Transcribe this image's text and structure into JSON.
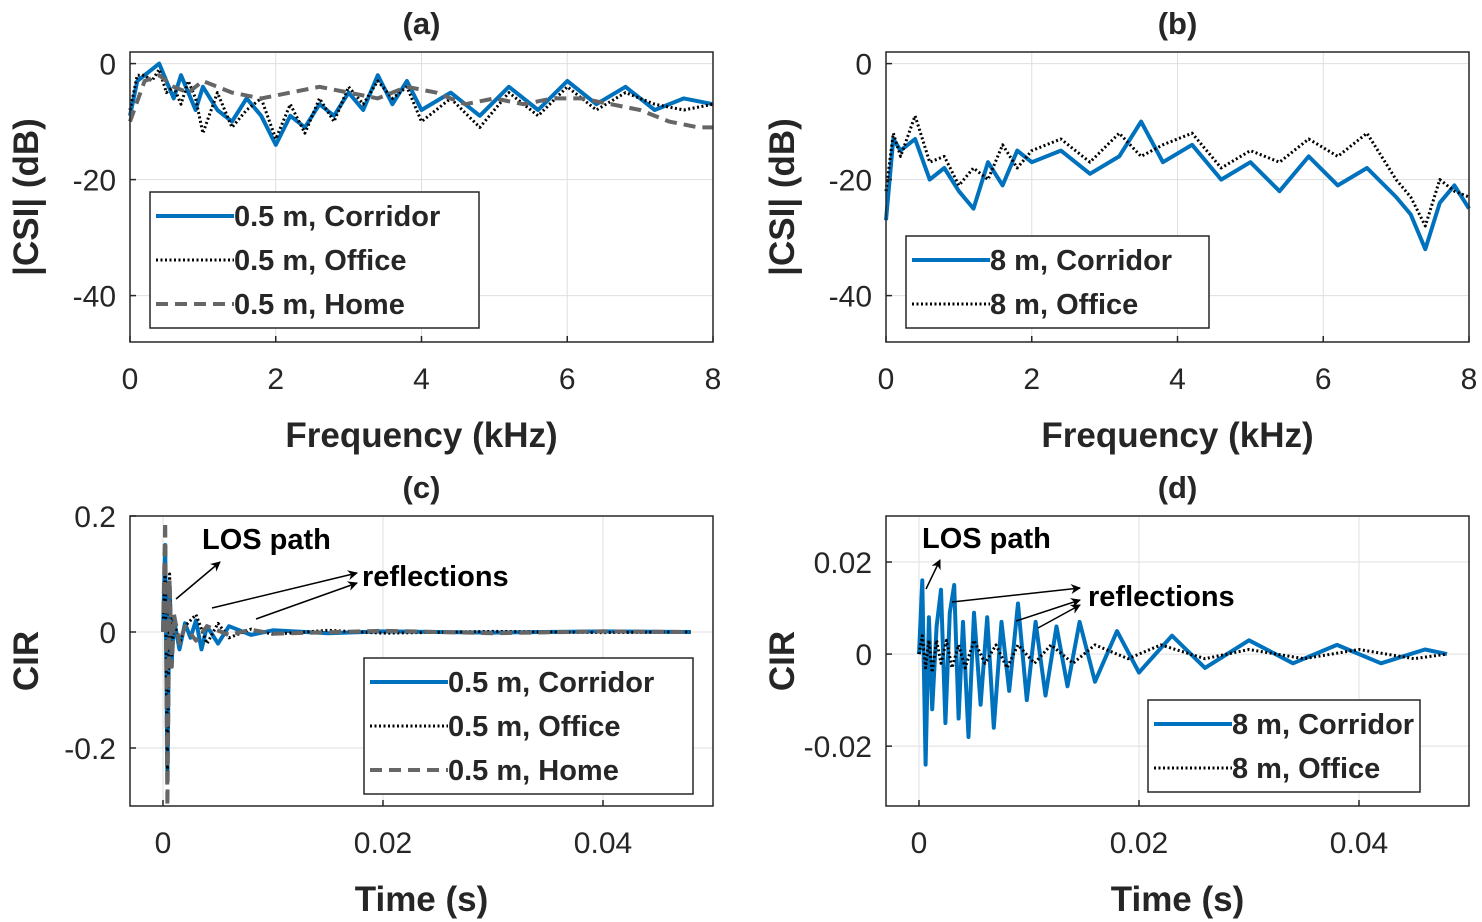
{
  "colors": {
    "corridor": "#0072bd",
    "office": "#000000",
    "home": "#666666",
    "axis": "#262626",
    "grid": "#dfdfdf"
  },
  "chart_data": [
    {
      "id": "a",
      "type": "line",
      "title": "(a)",
      "xlabel": "Frequency (kHz)",
      "ylabel": "|CSI| (dB)",
      "xlim": [
        0,
        8
      ],
      "ylim": [
        -48,
        2
      ],
      "xticks": [
        0,
        2,
        4,
        6,
        8
      ],
      "yticks": [
        0,
        -20,
        -40
      ],
      "xtick_labels": [
        "0",
        "2",
        "4",
        "6",
        "8"
      ],
      "ytick_labels": [
        "0",
        "-20",
        "-40"
      ],
      "grid": true,
      "legend_position": "bottom-left",
      "series": [
        {
          "name": "0.5 m, Corridor",
          "style": "solid",
          "color_key": "corridor",
          "x": [
            0,
            0.1,
            0.2,
            0.3,
            0.4,
            0.5,
            0.6,
            0.7,
            0.8,
            0.9,
            1.0,
            1.2,
            1.4,
            1.6,
            1.8,
            2.0,
            2.2,
            2.4,
            2.6,
            2.8,
            3.0,
            3.2,
            3.4,
            3.6,
            3.8,
            4.0,
            4.4,
            4.8,
            5.2,
            5.6,
            6.0,
            6.4,
            6.8,
            7.2,
            7.6,
            8.0
          ],
          "y": [
            -9,
            -3,
            -2,
            -1,
            0,
            -3,
            -6,
            -2,
            -5,
            -8,
            -4,
            -8,
            -10,
            -6,
            -9,
            -14,
            -9,
            -11,
            -7,
            -9,
            -5,
            -8,
            -2,
            -7,
            -3,
            -8,
            -5,
            -9,
            -4,
            -8,
            -3,
            -7,
            -4,
            -8,
            -6,
            -7
          ]
        },
        {
          "name": "0.5 m, Office",
          "style": "dotted",
          "color_key": "office",
          "x": [
            0,
            0.1,
            0.2,
            0.3,
            0.4,
            0.5,
            0.6,
            0.7,
            0.8,
            0.9,
            1.0,
            1.2,
            1.4,
            1.6,
            1.8,
            2.0,
            2.2,
            2.4,
            2.6,
            2.8,
            3.0,
            3.2,
            3.4,
            3.6,
            3.8,
            4.0,
            4.4,
            4.8,
            5.2,
            5.6,
            6.0,
            6.4,
            6.8,
            7.2,
            7.6,
            8.0
          ],
          "y": [
            -8,
            -2,
            -2,
            -3,
            -1,
            -5,
            -4,
            -7,
            -3,
            -6,
            -12,
            -5,
            -11,
            -8,
            -6,
            -13,
            -7,
            -12,
            -6,
            -10,
            -4,
            -7,
            -3,
            -6,
            -4,
            -10,
            -6,
            -11,
            -5,
            -9,
            -4,
            -8,
            -5,
            -7,
            -8,
            -7
          ]
        },
        {
          "name": "0.5 m, Home",
          "style": "dashed",
          "color_key": "home",
          "x": [
            0,
            0.2,
            0.4,
            0.6,
            0.8,
            1.0,
            1.4,
            1.8,
            2.2,
            2.6,
            3.0,
            3.4,
            3.8,
            4.2,
            4.6,
            5.0,
            5.4,
            5.8,
            6.2,
            6.6,
            7.0,
            7.4,
            7.8,
            8.0
          ],
          "y": [
            -10,
            -3,
            -2,
            -4,
            -5,
            -3,
            -5,
            -6,
            -5,
            -4,
            -5,
            -6,
            -4,
            -5,
            -7,
            -6,
            -7,
            -6,
            -6,
            -7,
            -8,
            -10,
            -11,
            -11
          ]
        }
      ]
    },
    {
      "id": "b",
      "type": "line",
      "title": "(b)",
      "xlabel": "Frequency (kHz)",
      "ylabel": "|CSI| (dB)",
      "xlim": [
        0,
        8
      ],
      "ylim": [
        -48,
        2
      ],
      "xticks": [
        0,
        2,
        4,
        6,
        8
      ],
      "yticks": [
        0,
        -20,
        -40
      ],
      "xtick_labels": [
        "0",
        "2",
        "4",
        "6",
        "8"
      ],
      "ytick_labels": [
        "0",
        "-20",
        "-40"
      ],
      "grid": true,
      "legend_position": "bottom-left",
      "series": [
        {
          "name": "8 m, Corridor",
          "style": "solid",
          "color_key": "corridor",
          "x": [
            0,
            0.1,
            0.2,
            0.4,
            0.6,
            0.8,
            1.0,
            1.2,
            1.4,
            1.6,
            1.8,
            2.0,
            2.4,
            2.8,
            3.2,
            3.5,
            3.8,
            4.2,
            4.6,
            5.0,
            5.4,
            5.8,
            6.2,
            6.6,
            7.0,
            7.2,
            7.4,
            7.6,
            7.8,
            8.0
          ],
          "y": [
            -27,
            -13,
            -15,
            -13,
            -20,
            -18,
            -22,
            -25,
            -17,
            -21,
            -15,
            -17,
            -15,
            -19,
            -16,
            -10,
            -17,
            -14,
            -20,
            -17,
            -22,
            -16,
            -21,
            -18,
            -23,
            -26,
            -32,
            -24,
            -21,
            -25
          ]
        },
        {
          "name": "8 m, Office",
          "style": "dotted",
          "color_key": "office",
          "x": [
            0,
            0.1,
            0.2,
            0.4,
            0.6,
            0.8,
            1.0,
            1.2,
            1.4,
            1.6,
            1.8,
            2.0,
            2.4,
            2.8,
            3.2,
            3.5,
            3.8,
            4.2,
            4.6,
            5.0,
            5.4,
            5.8,
            6.2,
            6.6,
            7.0,
            7.2,
            7.4,
            7.6,
            7.8,
            8.0
          ],
          "y": [
            -22,
            -12,
            -16,
            -9,
            -17,
            -16,
            -21,
            -18,
            -20,
            -14,
            -18,
            -15,
            -13,
            -17,
            -12,
            -16,
            -14,
            -12,
            -18,
            -15,
            -17,
            -13,
            -16,
            -12,
            -20,
            -23,
            -28,
            -20,
            -22,
            -23
          ]
        }
      ]
    },
    {
      "id": "c",
      "type": "line",
      "title": "(c)",
      "xlabel": "Time (s)",
      "ylabel": "CIR",
      "xlim": [
        -0.003,
        0.05
      ],
      "ylim": [
        -0.3,
        0.2
      ],
      "xticks": [
        0,
        0.02,
        0.04
      ],
      "yticks": [
        0.2,
        0,
        -0.2
      ],
      "xtick_labels": [
        "0",
        "0.02",
        "0.04"
      ],
      "ytick_labels": [
        "0.2",
        "0",
        "-0.2"
      ],
      "grid": true,
      "legend_position": "bottom-right",
      "annotations": {
        "los": "LOS path",
        "reflections": "reflections"
      },
      "series": [
        {
          "name": "0.5 m, Corridor",
          "style": "solid",
          "color_key": "corridor",
          "x": [
            0,
            0.0002,
            0.0004,
            0.0006,
            0.0008,
            0.001,
            0.0015,
            0.002,
            0.0025,
            0.003,
            0.0035,
            0.004,
            0.005,
            0.006,
            0.008,
            0.01,
            0.015,
            0.02,
            0.03,
            0.04,
            0.048
          ],
          "y": [
            0,
            0.15,
            -0.25,
            0.08,
            -0.05,
            0.02,
            -0.03,
            0.015,
            -0.01,
            0.02,
            -0.03,
            0.01,
            -0.02,
            0.01,
            -0.005,
            0.003,
            -0.002,
            0.001,
            -0.001,
            0.001,
            0
          ]
        },
        {
          "name": "0.5 m, Office",
          "style": "dotted",
          "color_key": "office",
          "x": [
            0,
            0.0002,
            0.0004,
            0.0006,
            0.0008,
            0.001,
            0.0015,
            0.002,
            0.003,
            0.004,
            0.005,
            0.006,
            0.008,
            0.01,
            0.015,
            0.02,
            0.03,
            0.04,
            0.048
          ],
          "y": [
            0,
            0.11,
            -0.26,
            0.1,
            -0.04,
            0.02,
            -0.02,
            0.01,
            0.03,
            -0.02,
            0.015,
            -0.01,
            0.005,
            -0.004,
            0.003,
            -0.002,
            0.001,
            -0.001,
            0
          ]
        },
        {
          "name": "0.5 m, Home",
          "style": "dashed",
          "color_key": "home",
          "x": [
            0,
            0.0002,
            0.0004,
            0.0006,
            0.0008,
            0.001,
            0.0015,
            0.002,
            0.003,
            0.004,
            0.006,
            0.008,
            0.01,
            0.02,
            0.03,
            0.04,
            0.048
          ],
          "y": [
            0,
            0.19,
            -0.3,
            0.09,
            -0.06,
            0.03,
            -0.02,
            0.01,
            -0.015,
            0.01,
            -0.005,
            0.004,
            -0.003,
            0.002,
            -0.002,
            0.001,
            0
          ]
        }
      ]
    },
    {
      "id": "d",
      "type": "line",
      "title": "(d)",
      "xlabel": "Time (s)",
      "ylabel": "CIR",
      "xlim": [
        -0.003,
        0.05
      ],
      "ylim": [
        -0.033,
        0.03
      ],
      "xticks": [
        0,
        0.02,
        0.04
      ],
      "yticks": [
        0.02,
        0,
        -0.02
      ],
      "xtick_labels": [
        "0",
        "0.02",
        "0.04"
      ],
      "ytick_labels": [
        "0.02",
        "0",
        "-0.02"
      ],
      "grid": true,
      "legend_position": "bottom-right",
      "annotations": {
        "los": "LOS path",
        "reflections": "reflections"
      },
      "series": [
        {
          "name": "8 m, Corridor",
          "style": "solid",
          "color_key": "corridor",
          "x": [
            0,
            0.0003,
            0.0006,
            0.0009,
            0.0012,
            0.0016,
            0.002,
            0.0024,
            0.0028,
            0.0032,
            0.0036,
            0.004,
            0.0045,
            0.005,
            0.0056,
            0.0062,
            0.0068,
            0.0075,
            0.0082,
            0.009,
            0.0098,
            0.0106,
            0.0115,
            0.0125,
            0.0135,
            0.0146,
            0.016,
            0.018,
            0.02,
            0.023,
            0.026,
            0.03,
            0.034,
            0.038,
            0.042,
            0.046,
            0.048
          ],
          "y": [
            0,
            0.016,
            -0.024,
            0.008,
            -0.012,
            0.006,
            0.014,
            -0.015,
            0.009,
            0.015,
            -0.014,
            0.007,
            -0.018,
            0.009,
            -0.011,
            0.008,
            -0.016,
            0.007,
            -0.008,
            0.011,
            -0.01,
            0.007,
            -0.009,
            0.006,
            -0.007,
            0.007,
            -0.006,
            0.005,
            -0.004,
            0.004,
            -0.003,
            0.003,
            -0.002,
            0.002,
            -0.002,
            0.001,
            0
          ]
        },
        {
          "name": "8 m, Office",
          "style": "dotted",
          "color_key": "office",
          "x": [
            0,
            0.0003,
            0.0006,
            0.0009,
            0.0012,
            0.0016,
            0.002,
            0.0025,
            0.003,
            0.0036,
            0.0042,
            0.005,
            0.006,
            0.007,
            0.008,
            0.009,
            0.0105,
            0.012,
            0.014,
            0.016,
            0.019,
            0.022,
            0.026,
            0.03,
            0.035,
            0.04,
            0.045,
            0.048
          ],
          "y": [
            0,
            0.004,
            -0.003,
            0.003,
            -0.004,
            0.003,
            -0.002,
            0.003,
            -0.003,
            0.002,
            -0.003,
            0.003,
            -0.002,
            0.002,
            -0.003,
            0.002,
            -0.002,
            0.002,
            -0.002,
            0.002,
            -0.001,
            0.002,
            -0.001,
            0.001,
            -0.001,
            0.001,
            -0.001,
            0
          ]
        }
      ]
    }
  ]
}
